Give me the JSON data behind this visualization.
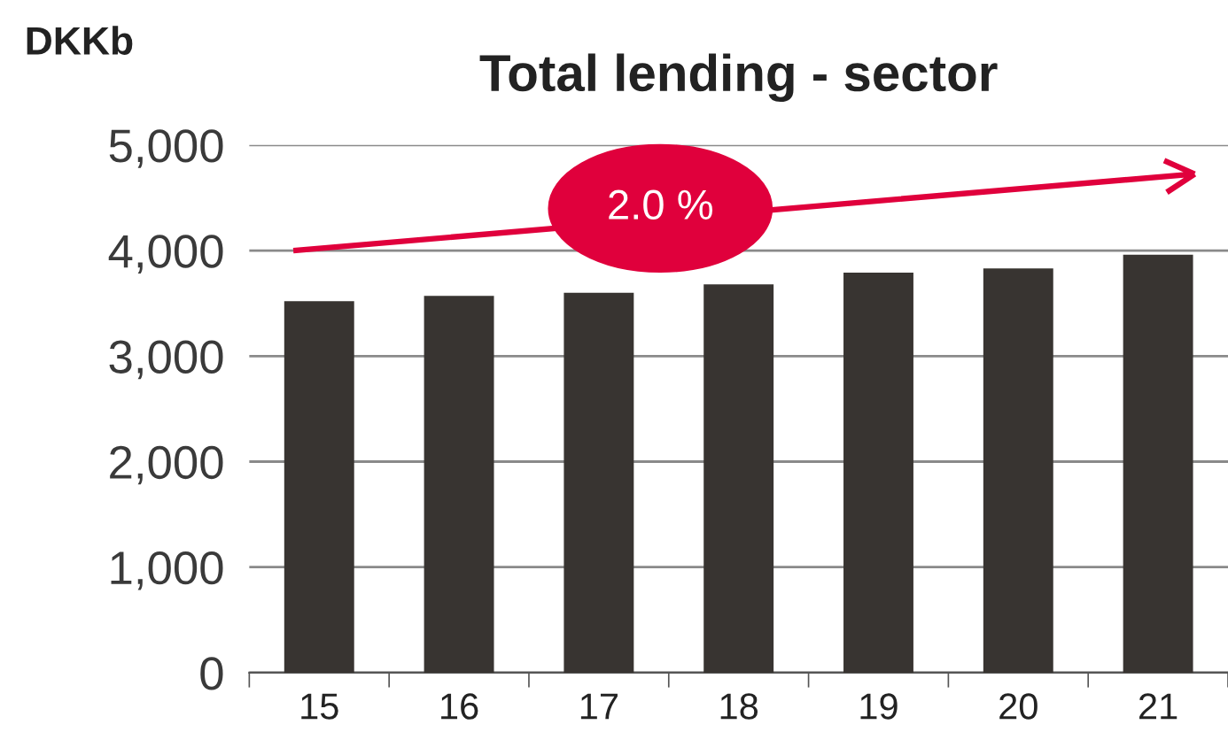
{
  "chart_data": {
    "type": "bar",
    "title": "Total lending - sector",
    "ylabel": "DKKb",
    "categories": [
      "15",
      "16",
      "17",
      "18",
      "19",
      "20",
      "21"
    ],
    "values": [
      3520,
      3570,
      3600,
      3680,
      3790,
      3830,
      3960
    ],
    "color": "#383431",
    "ylim": [
      0,
      5000
    ],
    "yticks": [
      {
        "value": 0,
        "label": "0"
      },
      {
        "value": 1000,
        "label": "1,000"
      },
      {
        "value": 2000,
        "label": "2,000"
      },
      {
        "value": 3000,
        "label": "3,000"
      },
      {
        "value": 4000,
        "label": "4,000"
      },
      {
        "value": 5000,
        "label": "5,000"
      }
    ],
    "grid": "y",
    "annotations": [
      "2.0 %"
    ]
  }
}
